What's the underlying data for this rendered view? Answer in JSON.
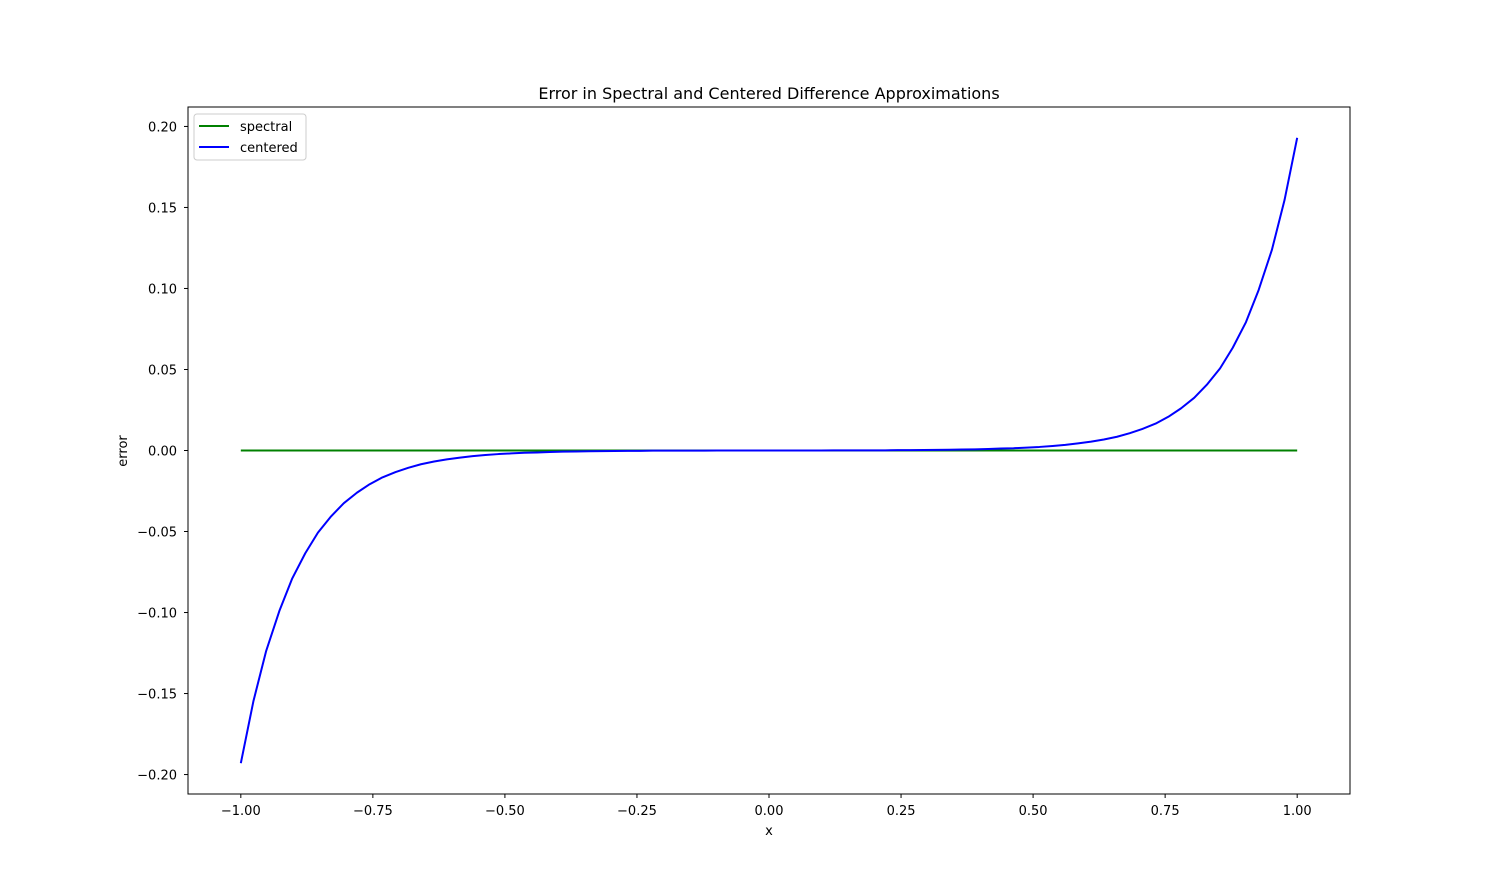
{
  "chart_data": {
    "type": "line",
    "title": "Error in Spectral and Centered Difference Approximations",
    "xlabel": "x",
    "ylabel": "error",
    "xlim": [
      -1.1,
      1.1
    ],
    "ylim": [
      -0.212,
      0.212
    ],
    "xticks": [
      -1.0,
      -0.75,
      -0.5,
      -0.25,
      0.0,
      0.25,
      0.5,
      0.75,
      1.0
    ],
    "xtick_labels": [
      "−1.00",
      "−0.75",
      "−0.50",
      "−0.25",
      "0.00",
      "0.25",
      "0.50",
      "0.75",
      "1.00"
    ],
    "yticks": [
      -0.2,
      -0.15,
      -0.1,
      -0.05,
      0.0,
      0.05,
      0.1,
      0.15,
      0.2
    ],
    "ytick_labels": [
      "−0.20",
      "−0.15",
      "−0.10",
      "−0.05",
      "0.00",
      "0.05",
      "0.10",
      "0.15",
      "0.20"
    ],
    "grid": false,
    "legend_position": "top-left",
    "x": [
      -1.0,
      -0.976,
      -0.952,
      -0.927,
      -0.903,
      -0.878,
      -0.854,
      -0.829,
      -0.805,
      -0.78,
      -0.756,
      -0.732,
      -0.707,
      -0.683,
      -0.659,
      -0.634,
      -0.61,
      -0.585,
      -0.561,
      -0.537,
      -0.512,
      -0.488,
      -0.463,
      -0.439,
      -0.415,
      -0.39,
      -0.366,
      -0.341,
      -0.317,
      -0.293,
      -0.268,
      -0.244,
      -0.22,
      -0.195,
      -0.171,
      -0.146,
      -0.122,
      -0.098,
      -0.073,
      -0.049,
      -0.024,
      0.0,
      0.024,
      0.049,
      0.073,
      0.098,
      0.122,
      0.146,
      0.171,
      0.195,
      0.22,
      0.244,
      0.268,
      0.293,
      0.317,
      0.341,
      0.366,
      0.39,
      0.415,
      0.439,
      0.463,
      0.488,
      0.512,
      0.537,
      0.561,
      0.585,
      0.61,
      0.634,
      0.659,
      0.683,
      0.707,
      0.732,
      0.756,
      0.78,
      0.805,
      0.829,
      0.854,
      0.878,
      0.903,
      0.927,
      0.952,
      0.976,
      1.0
    ],
    "series": [
      {
        "name": "spectral",
        "color": "#008000",
        "values": [
          0,
          0,
          0,
          0,
          0,
          0,
          0,
          0,
          0,
          0,
          0,
          0,
          0,
          0,
          0,
          0,
          0,
          0,
          0,
          0,
          0,
          0,
          0,
          0,
          0,
          0,
          0,
          0,
          0,
          0,
          0,
          0,
          0,
          0,
          0,
          0,
          0,
          0,
          0,
          0,
          0,
          0,
          0,
          0,
          0,
          0,
          0,
          0,
          0,
          0,
          0,
          0,
          0,
          0,
          0,
          0,
          0,
          0,
          0,
          0,
          0,
          0,
          0,
          0,
          0,
          0,
          0,
          0,
          0,
          0,
          0,
          0,
          0,
          0,
          0,
          0,
          0,
          0,
          0,
          0,
          0,
          0,
          0
        ]
      },
      {
        "name": "centered",
        "color": "#0000ff",
        "values": [
          -0.193,
          -0.1545,
          -0.1237,
          -0.099,
          -0.0792,
          -0.0634,
          -0.0507,
          -0.0406,
          -0.0325,
          -0.026,
          -0.0208,
          -0.0166,
          -0.0133,
          -0.0107,
          -0.0085,
          -0.0068,
          -0.0055,
          -0.0044,
          -0.0035,
          -0.0028,
          -0.0022,
          -0.0018,
          -0.0014,
          -0.0012,
          -0.0009,
          -0.0007,
          -0.0006,
          -0.0005,
          -0.0004,
          -0.0003,
          -0.0002,
          -0.0002,
          -0.0001,
          -0.0001,
          -0.0001,
          -0.0001,
          -0.0001,
          0.0,
          0.0,
          0.0,
          0.0,
          0.0,
          0.0,
          0.0,
          0.0,
          0.0,
          0.0001,
          0.0001,
          0.0001,
          0.0001,
          0.0001,
          0.0002,
          0.0002,
          0.0003,
          0.0004,
          0.0005,
          0.0006,
          0.0007,
          0.0009,
          0.0012,
          0.0014,
          0.0018,
          0.0022,
          0.0028,
          0.0035,
          0.0044,
          0.0055,
          0.0068,
          0.0085,
          0.0107,
          0.0133,
          0.0166,
          0.0208,
          0.026,
          0.0325,
          0.0406,
          0.0507,
          0.0634,
          0.0792,
          0.099,
          0.1237,
          0.1545,
          0.193
        ]
      }
    ]
  }
}
